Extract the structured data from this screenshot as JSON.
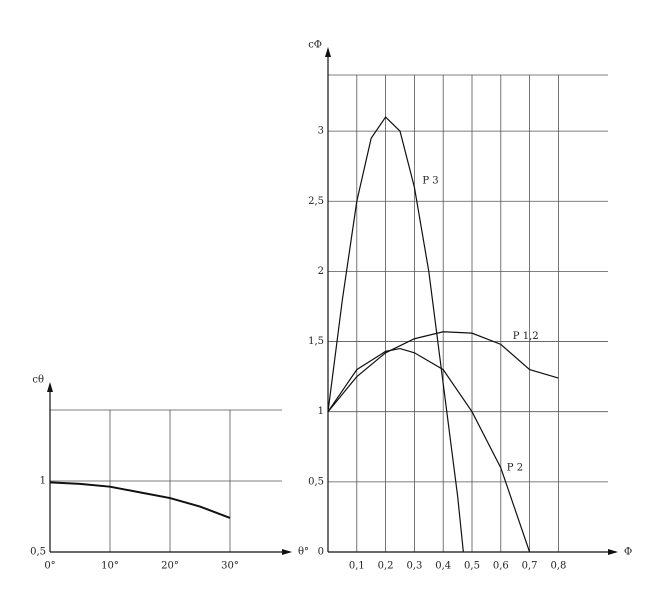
{
  "chart_data": [
    {
      "type": "line",
      "y_label": "cθ",
      "x_label": "θ°",
      "xlim": [
        0,
        40
      ],
      "ylim": [
        0.5,
        1.5
      ],
      "xticks": [
        {
          "value": 0,
          "label": "0°"
        },
        {
          "value": 10,
          "label": "10°"
        },
        {
          "value": 20,
          "label": "20°"
        },
        {
          "value": 30,
          "label": "30°"
        }
      ],
      "yticks": [
        {
          "value": 0.5,
          "label": "0,5"
        },
        1
      ],
      "grid": true,
      "series": [
        {
          "color": "#111",
          "x": [
            0,
            5,
            10,
            15,
            20,
            25,
            30
          ],
          "values": [
            0.99,
            0.98,
            0.96,
            0.92,
            0.88,
            0.82,
            0.74
          ]
        }
      ]
    },
    {
      "type": "line",
      "y_label": "cΦ",
      "x_label": "Φ",
      "xlim": [
        0,
        1.0
      ],
      "ylim": [
        0,
        3.4
      ],
      "xticks": [
        {
          "value": 0.1,
          "label": "0,1"
        },
        {
          "value": 0.2,
          "label": "0,2"
        },
        {
          "value": 0.3,
          "label": "0,3"
        },
        {
          "value": 0.4,
          "label": "0,4"
        },
        {
          "value": 0.5,
          "label": "0,5"
        },
        {
          "value": 0.6,
          "label": "0,6"
        },
        {
          "value": 0.7,
          "label": "0,7"
        },
        {
          "value": 0.8,
          "label": "0,8"
        }
      ],
      "yticks": [
        0,
        {
          "value": 0.5,
          "label": "0,5"
        },
        1,
        {
          "value": 1.5,
          "label": "1,5"
        },
        2,
        {
          "value": 2.5,
          "label": "2,5"
        },
        3
      ],
      "grid": true,
      "series": [
        {
          "name": "P 3",
          "color": "#111",
          "x": [
            0,
            0.05,
            0.1,
            0.15,
            0.2,
            0.25,
            0.3,
            0.35,
            0.4,
            0.45,
            0.47
          ],
          "values": [
            1,
            1.8,
            2.5,
            2.95,
            3.1,
            3.0,
            2.6,
            2.0,
            1.2,
            0.4,
            0
          ]
        },
        {
          "name": "P 1,2",
          "color": "#111",
          "x": [
            0,
            0.1,
            0.2,
            0.3,
            0.4,
            0.5,
            0.6,
            0.7,
            0.8
          ],
          "values": [
            1,
            1.25,
            1.42,
            1.52,
            1.57,
            1.56,
            1.48,
            1.3,
            1.24
          ]
        },
        {
          "name": "P 2",
          "color": "#111",
          "x": [
            0,
            0.1,
            0.2,
            0.25,
            0.3,
            0.4,
            0.5,
            0.6,
            0.7
          ],
          "values": [
            1,
            1.3,
            1.43,
            1.45,
            1.42,
            1.3,
            1.0,
            0.6,
            0
          ]
        }
      ]
    }
  ]
}
